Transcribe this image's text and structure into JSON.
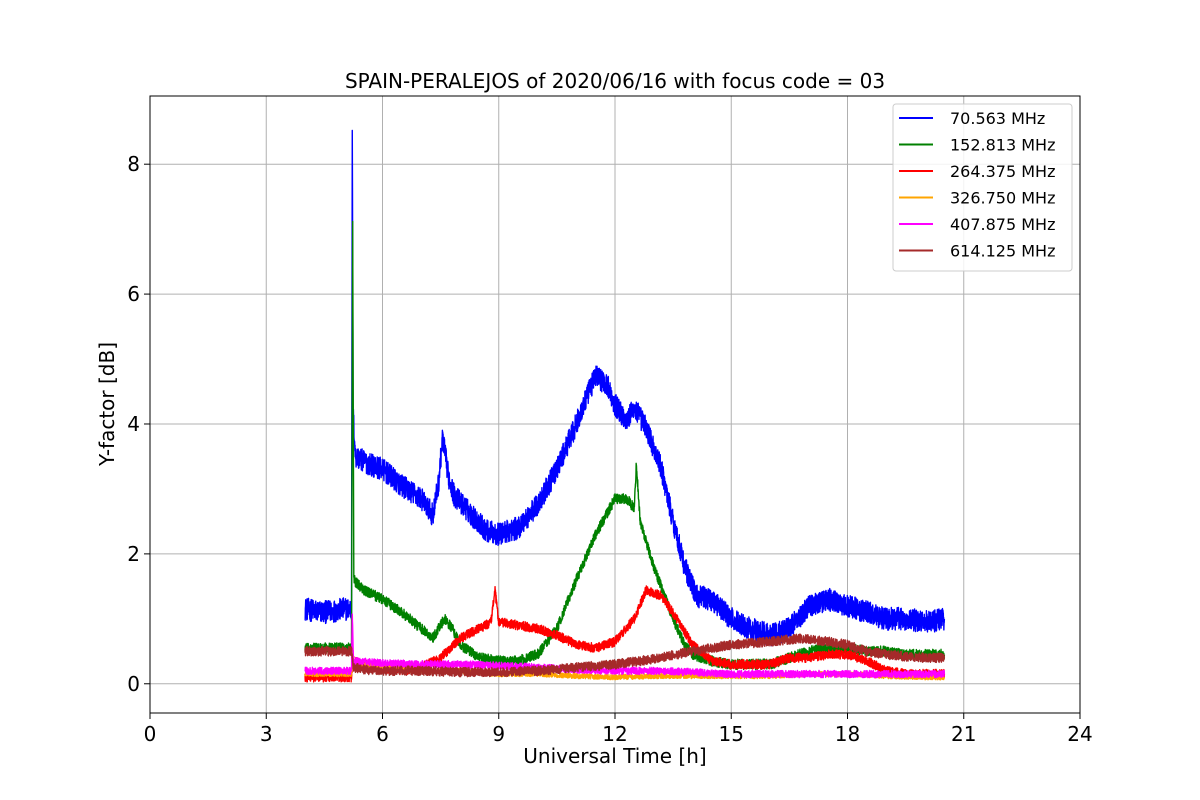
{
  "chart_data": {
    "type": "line",
    "title": "SPAIN-PERALEJOS of 2020/06/16 with focus code = 03",
    "xlabel": "Universal Time [h]",
    "ylabel": "Y-factor [dB]",
    "xlim": [
      0,
      24
    ],
    "ylim": [
      -0.45,
      9.05
    ],
    "xticks": [
      0,
      3,
      6,
      9,
      12,
      15,
      18,
      21,
      24
    ],
    "yticks": [
      0,
      2,
      4,
      6,
      8
    ],
    "grid": true,
    "legend_position": "top-right",
    "series": [
      {
        "name": " 70.563 MHz",
        "color": "#0000ff",
        "noise": 0.22,
        "points": [
          [
            4.0,
            1.15
          ],
          [
            4.5,
            1.1
          ],
          [
            5.0,
            1.15
          ],
          [
            5.2,
            1.15
          ],
          [
            5.22,
            8.6
          ],
          [
            5.24,
            4.2
          ],
          [
            5.3,
            3.5
          ],
          [
            5.6,
            3.4
          ],
          [
            6.0,
            3.3
          ],
          [
            6.5,
            3.05
          ],
          [
            7.0,
            2.85
          ],
          [
            7.3,
            2.6
          ],
          [
            7.45,
            3.1
          ],
          [
            7.55,
            3.8
          ],
          [
            7.7,
            3.2
          ],
          [
            7.85,
            2.9
          ],
          [
            8.0,
            2.8
          ],
          [
            8.3,
            2.6
          ],
          [
            8.7,
            2.35
          ],
          [
            9.0,
            2.3
          ],
          [
            9.5,
            2.4
          ],
          [
            10.0,
            2.75
          ],
          [
            10.5,
            3.3
          ],
          [
            11.0,
            4.0
          ],
          [
            11.5,
            4.75
          ],
          [
            11.8,
            4.6
          ],
          [
            12.0,
            4.3
          ],
          [
            12.3,
            4.05
          ],
          [
            12.5,
            4.25
          ],
          [
            12.8,
            3.95
          ],
          [
            13.2,
            3.3
          ],
          [
            13.5,
            2.5
          ],
          [
            13.8,
            1.8
          ],
          [
            14.1,
            1.35
          ],
          [
            14.5,
            1.3
          ],
          [
            15.0,
            1.0
          ],
          [
            15.5,
            0.85
          ],
          [
            16.0,
            0.75
          ],
          [
            16.5,
            0.85
          ],
          [
            17.0,
            1.2
          ],
          [
            17.5,
            1.3
          ],
          [
            18.0,
            1.2
          ],
          [
            18.5,
            1.1
          ],
          [
            19.0,
            1.0
          ],
          [
            19.5,
            1.0
          ],
          [
            20.0,
            0.95
          ],
          [
            20.5,
            1.0
          ]
        ]
      },
      {
        "name": "152.813 MHz",
        "color": "#008000",
        "noise": 0.1,
        "points": [
          [
            4.0,
            0.55
          ],
          [
            4.5,
            0.55
          ],
          [
            5.0,
            0.55
          ],
          [
            5.2,
            0.55
          ],
          [
            5.23,
            7.05
          ],
          [
            5.26,
            1.6
          ],
          [
            5.5,
            1.45
          ],
          [
            6.0,
            1.3
          ],
          [
            6.5,
            1.1
          ],
          [
            7.0,
            0.85
          ],
          [
            7.3,
            0.7
          ],
          [
            7.6,
            1.0
          ],
          [
            7.8,
            0.85
          ],
          [
            8.0,
            0.6
          ],
          [
            8.5,
            0.4
          ],
          [
            9.0,
            0.35
          ],
          [
            9.5,
            0.35
          ],
          [
            10.0,
            0.45
          ],
          [
            10.5,
            0.85
          ],
          [
            11.0,
            1.6
          ],
          [
            11.5,
            2.3
          ],
          [
            12.0,
            2.85
          ],
          [
            12.3,
            2.85
          ],
          [
            12.5,
            2.7
          ],
          [
            12.55,
            3.4
          ],
          [
            12.65,
            2.5
          ],
          [
            13.0,
            1.8
          ],
          [
            13.5,
            1.0
          ],
          [
            13.8,
            0.6
          ],
          [
            14.0,
            0.45
          ],
          [
            14.5,
            0.35
          ],
          [
            15.0,
            0.3
          ],
          [
            15.5,
            0.3
          ],
          [
            16.0,
            0.3
          ],
          [
            16.5,
            0.4
          ],
          [
            17.0,
            0.5
          ],
          [
            17.5,
            0.55
          ],
          [
            18.0,
            0.55
          ],
          [
            18.5,
            0.5
          ],
          [
            19.0,
            0.5
          ],
          [
            19.5,
            0.45
          ],
          [
            20.0,
            0.45
          ],
          [
            20.5,
            0.45
          ]
        ]
      },
      {
        "name": "264.375 MHz",
        "color": "#ff0000",
        "noise": 0.09,
        "points": [
          [
            4.0,
            0.1
          ],
          [
            4.5,
            0.1
          ],
          [
            5.0,
            0.1
          ],
          [
            5.2,
            0.1
          ],
          [
            5.24,
            0.35
          ],
          [
            5.5,
            0.3
          ],
          [
            6.0,
            0.25
          ],
          [
            6.5,
            0.2
          ],
          [
            7.0,
            0.25
          ],
          [
            7.5,
            0.4
          ],
          [
            8.0,
            0.7
          ],
          [
            8.5,
            0.85
          ],
          [
            8.8,
            0.95
          ],
          [
            8.9,
            1.45
          ],
          [
            9.0,
            0.95
          ],
          [
            9.5,
            0.9
          ],
          [
            10.0,
            0.85
          ],
          [
            10.5,
            0.75
          ],
          [
            11.0,
            0.6
          ],
          [
            11.5,
            0.55
          ],
          [
            12.0,
            0.65
          ],
          [
            12.5,
            1.0
          ],
          [
            12.8,
            1.45
          ],
          [
            13.2,
            1.35
          ],
          [
            13.6,
            1.0
          ],
          [
            14.0,
            0.6
          ],
          [
            14.5,
            0.35
          ],
          [
            15.0,
            0.3
          ],
          [
            15.5,
            0.3
          ],
          [
            16.0,
            0.3
          ],
          [
            16.5,
            0.4
          ],
          [
            17.0,
            0.4
          ],
          [
            17.5,
            0.45
          ],
          [
            18.0,
            0.45
          ],
          [
            18.5,
            0.35
          ],
          [
            19.0,
            0.2
          ],
          [
            19.5,
            0.15
          ],
          [
            20.0,
            0.15
          ],
          [
            20.5,
            0.15
          ]
        ]
      },
      {
        "name": "326.750 MHz",
        "color": "#ffa500",
        "noise": 0.05,
        "points": [
          [
            4.0,
            0.15
          ],
          [
            5.0,
            0.15
          ],
          [
            5.2,
            0.15
          ],
          [
            5.24,
            0.3
          ],
          [
            6.0,
            0.25
          ],
          [
            7.0,
            0.2
          ],
          [
            8.0,
            0.2
          ],
          [
            9.0,
            0.15
          ],
          [
            10.0,
            0.15
          ],
          [
            11.0,
            0.12
          ],
          [
            12.0,
            0.1
          ],
          [
            13.0,
            0.12
          ],
          [
            14.0,
            0.12
          ],
          [
            15.0,
            0.12
          ],
          [
            16.0,
            0.12
          ],
          [
            17.0,
            0.15
          ],
          [
            18.0,
            0.15
          ],
          [
            19.0,
            0.12
          ],
          [
            20.0,
            0.1
          ],
          [
            20.5,
            0.1
          ]
        ]
      },
      {
        "name": "407.875 MHz",
        "color": "#ff00ff",
        "noise": 0.07,
        "points": [
          [
            4.0,
            0.2
          ],
          [
            5.0,
            0.2
          ],
          [
            5.2,
            0.2
          ],
          [
            5.22,
            1.1
          ],
          [
            5.25,
            0.35
          ],
          [
            6.0,
            0.32
          ],
          [
            7.0,
            0.3
          ],
          [
            8.0,
            0.3
          ],
          [
            9.0,
            0.28
          ],
          [
            10.0,
            0.25
          ],
          [
            11.0,
            0.22
          ],
          [
            12.0,
            0.2
          ],
          [
            13.0,
            0.2
          ],
          [
            14.0,
            0.18
          ],
          [
            15.0,
            0.15
          ],
          [
            16.0,
            0.15
          ],
          [
            17.0,
            0.15
          ],
          [
            18.0,
            0.15
          ],
          [
            19.0,
            0.15
          ],
          [
            20.0,
            0.15
          ],
          [
            20.5,
            0.15
          ]
        ]
      },
      {
        "name": "614.125 MHz",
        "color": "#a52a2a",
        "noise": 0.09,
        "points": [
          [
            4.0,
            0.5
          ],
          [
            4.5,
            0.5
          ],
          [
            5.0,
            0.5
          ],
          [
            5.2,
            0.5
          ],
          [
            5.25,
            0.25
          ],
          [
            5.5,
            0.22
          ],
          [
            6.0,
            0.2
          ],
          [
            7.0,
            0.2
          ],
          [
            8.0,
            0.18
          ],
          [
            9.0,
            0.18
          ],
          [
            10.0,
            0.2
          ],
          [
            11.0,
            0.25
          ],
          [
            12.0,
            0.3
          ],
          [
            13.0,
            0.38
          ],
          [
            14.0,
            0.5
          ],
          [
            15.0,
            0.6
          ],
          [
            16.0,
            0.65
          ],
          [
            16.8,
            0.7
          ],
          [
            17.5,
            0.65
          ],
          [
            18.0,
            0.6
          ],
          [
            18.5,
            0.5
          ],
          [
            19.0,
            0.45
          ],
          [
            19.5,
            0.42
          ],
          [
            20.0,
            0.4
          ],
          [
            20.5,
            0.4
          ]
        ]
      }
    ]
  }
}
